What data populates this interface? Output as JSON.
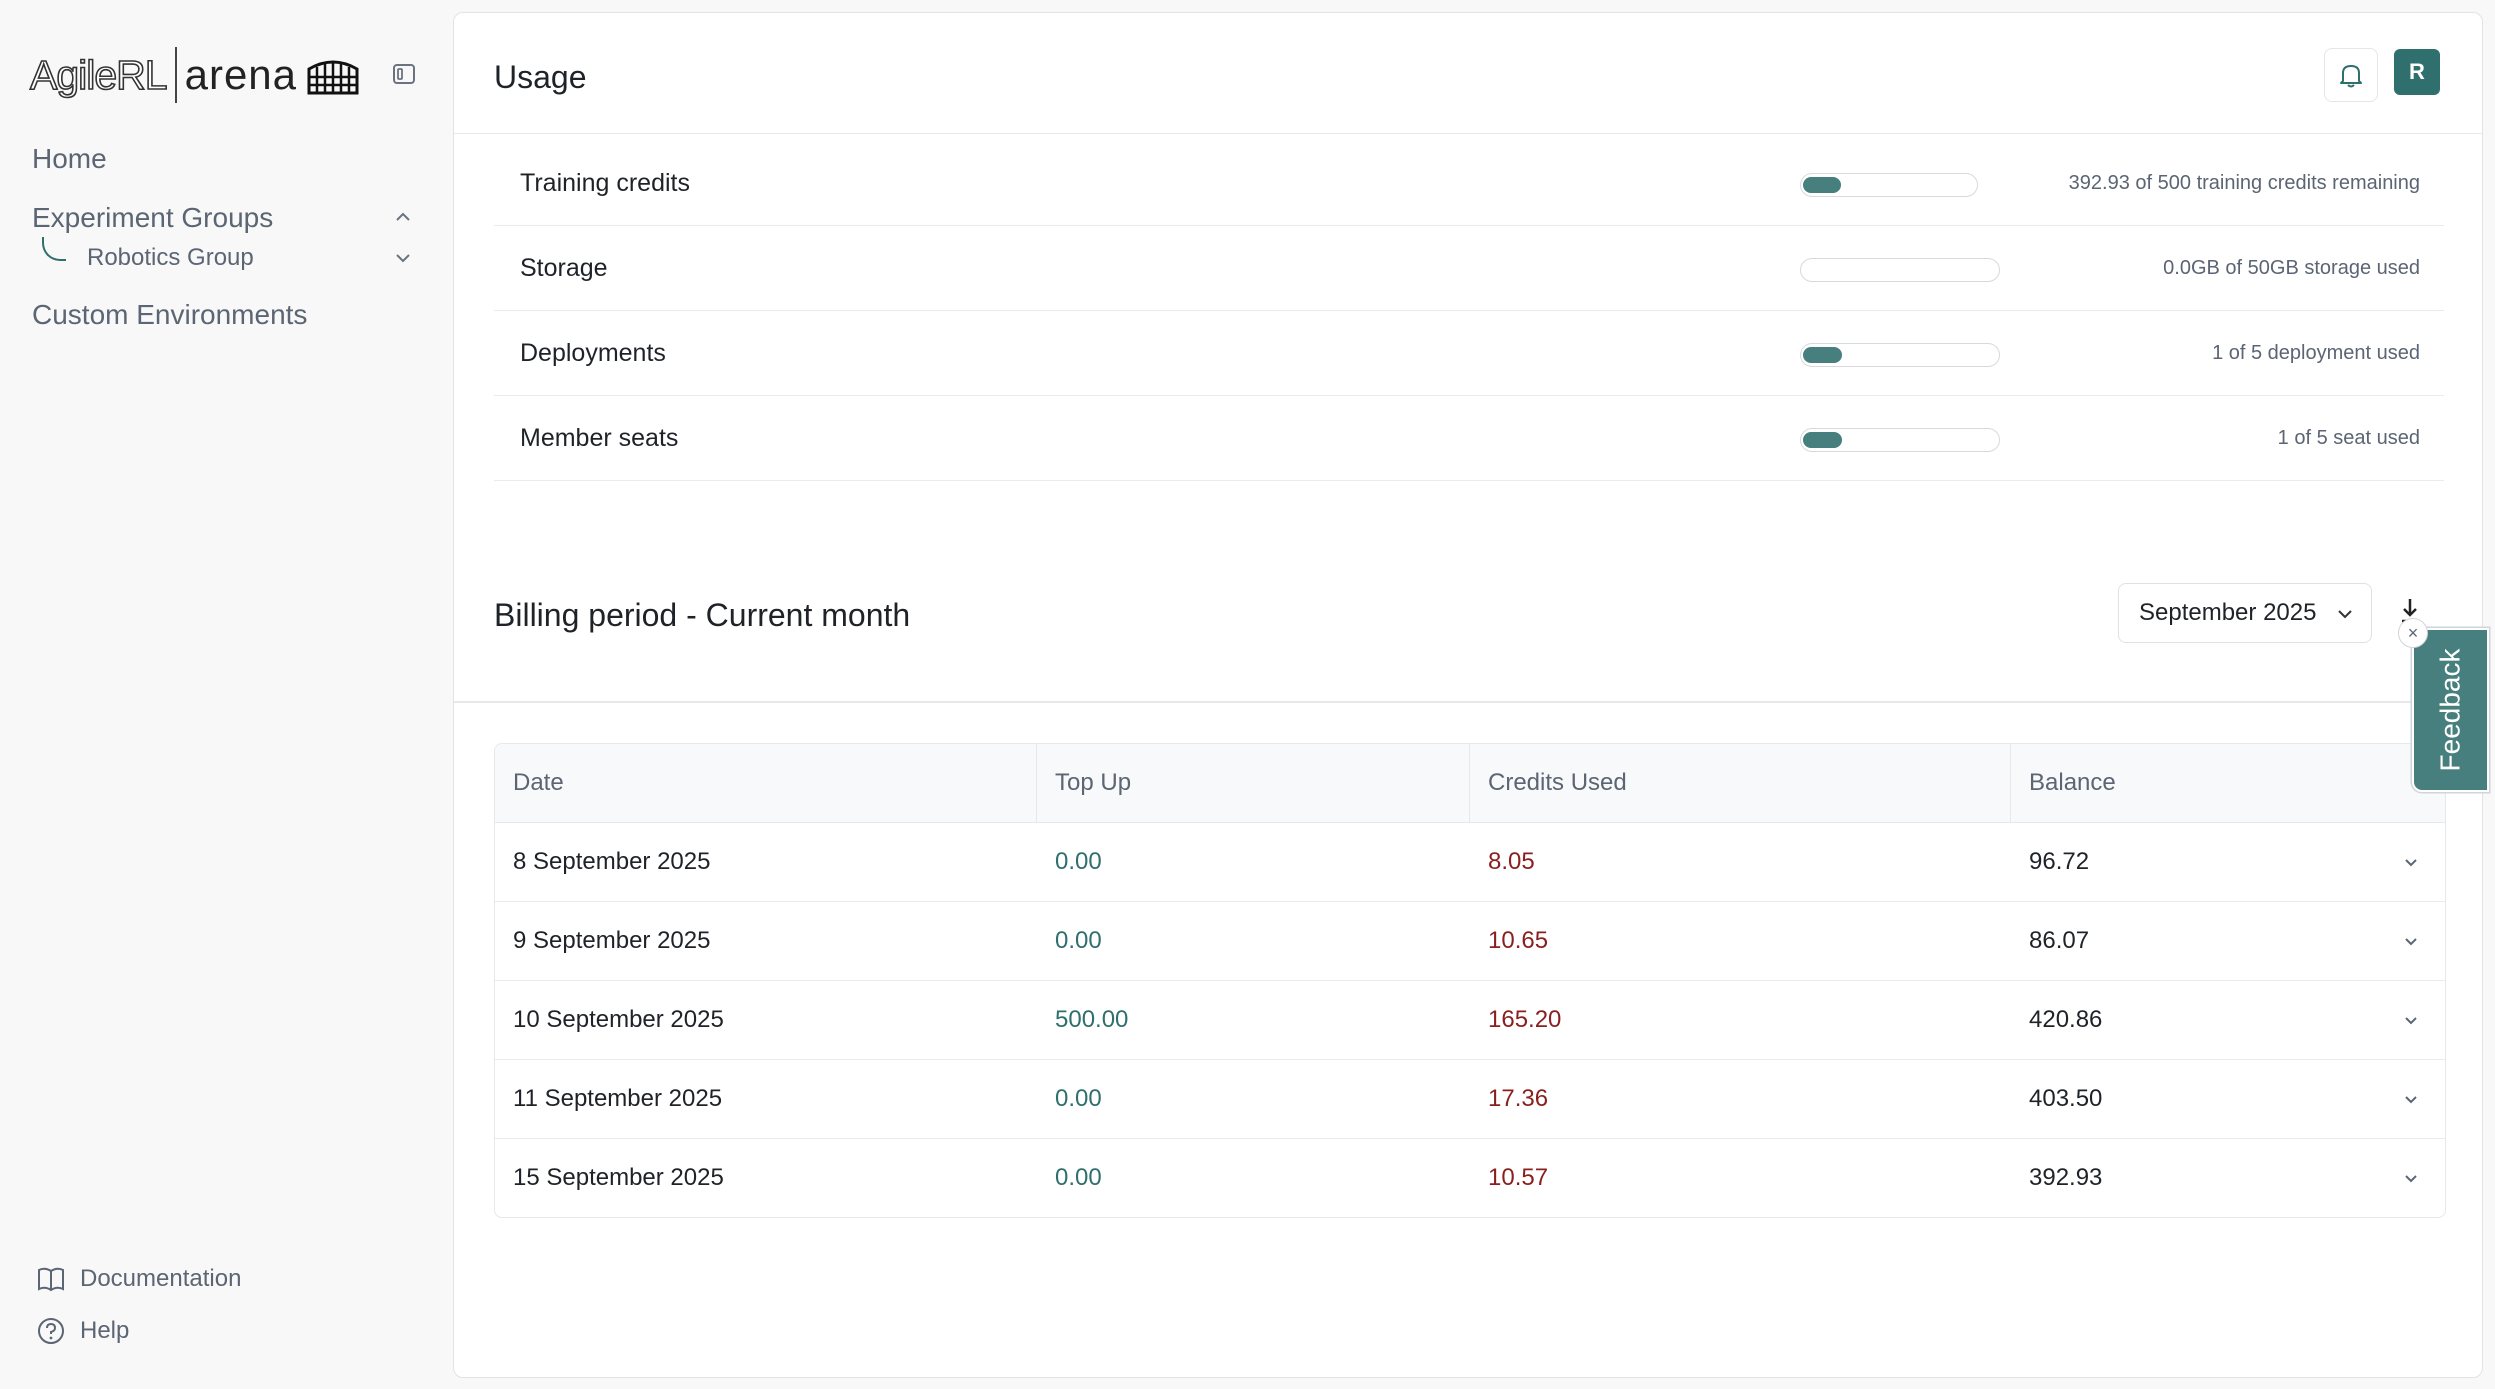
{
  "brand": {
    "logo_left": "AgileRL",
    "logo_right": "arena"
  },
  "sidebar": {
    "home": "Home",
    "experiment_groups": "Experiment Groups",
    "robotics_group": "Robotics Group",
    "custom_environments": "Custom Environments",
    "documentation": "Documentation",
    "help": "Help"
  },
  "header": {
    "title": "Usage",
    "avatar_initial": "R"
  },
  "usage": [
    {
      "label": "Training credits",
      "fraction": 0.2141,
      "text": "392.93 of 500 training credits remaining"
    },
    {
      "label": "Storage",
      "fraction": 0.0,
      "text": "0.0GB of 50GB storage used"
    },
    {
      "label": "Deployments",
      "fraction": 0.2,
      "text": "1 of 5 deployment used"
    },
    {
      "label": "Member seats",
      "fraction": 0.2,
      "text": "1 of 5 seat used"
    }
  ],
  "billing": {
    "title": "Billing period - Current month",
    "selected_month": "September 2025",
    "columns": [
      "Date",
      "Top Up",
      "Credits Used",
      "Balance"
    ],
    "rows": [
      [
        "8 September 2025",
        "0.00",
        "8.05",
        "96.72"
      ],
      [
        "9 September 2025",
        "0.00",
        "10.65",
        "86.07"
      ],
      [
        "10 September 2025",
        "500.00",
        "165.20",
        "420.86"
      ],
      [
        "11 September 2025",
        "0.00",
        "17.36",
        "403.50"
      ],
      [
        "15 September 2025",
        "0.00",
        "10.57",
        "392.93"
      ]
    ]
  },
  "feedback": {
    "label": "Feedback"
  },
  "colors": {
    "accent": "#2f6f6d",
    "bar_fill": "#467f7d",
    "debit": "#8a1f1f",
    "muted": "#5b6573"
  }
}
